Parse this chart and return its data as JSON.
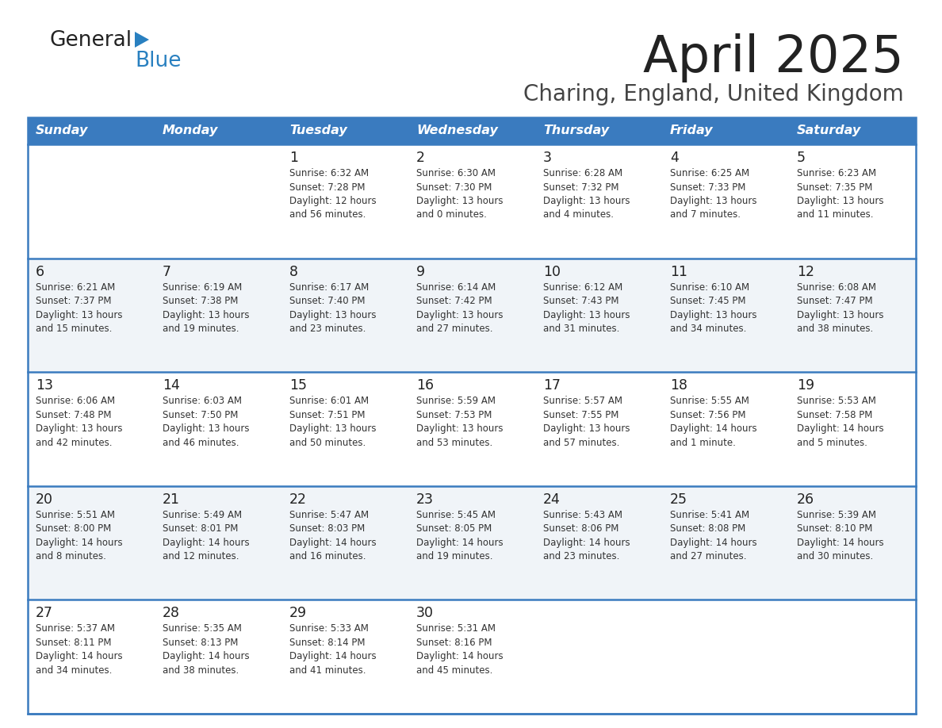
{
  "title": "April 2025",
  "subtitle": "Charing, England, United Kingdom",
  "header_bg_color": "#3a7bbf",
  "header_text_color": "#ffffff",
  "row_bg_even": "#ffffff",
  "row_bg_odd": "#f0f4f8",
  "title_color": "#222222",
  "subtitle_color": "#444444",
  "day_number_color": "#222222",
  "cell_text_color": "#333333",
  "separator_color": "#3a7bbf",
  "logo_text_color": "#222222",
  "logo_blue_color": "#2980c0",
  "days_of_week": [
    "Sunday",
    "Monday",
    "Tuesday",
    "Wednesday",
    "Thursday",
    "Friday",
    "Saturday"
  ],
  "weeks": [
    [
      {
        "day": null,
        "sunrise": null,
        "sunset": null,
        "daylight_line1": null,
        "daylight_line2": null
      },
      {
        "day": null,
        "sunrise": null,
        "sunset": null,
        "daylight_line1": null,
        "daylight_line2": null
      },
      {
        "day": "1",
        "sunrise": "6:32 AM",
        "sunset": "7:28 PM",
        "daylight_line1": "12 hours",
        "daylight_line2": "and 56 minutes."
      },
      {
        "day": "2",
        "sunrise": "6:30 AM",
        "sunset": "7:30 PM",
        "daylight_line1": "13 hours",
        "daylight_line2": "and 0 minutes."
      },
      {
        "day": "3",
        "sunrise": "6:28 AM",
        "sunset": "7:32 PM",
        "daylight_line1": "13 hours",
        "daylight_line2": "and 4 minutes."
      },
      {
        "day": "4",
        "sunrise": "6:25 AM",
        "sunset": "7:33 PM",
        "daylight_line1": "13 hours",
        "daylight_line2": "and 7 minutes."
      },
      {
        "day": "5",
        "sunrise": "6:23 AM",
        "sunset": "7:35 PM",
        "daylight_line1": "13 hours",
        "daylight_line2": "and 11 minutes."
      }
    ],
    [
      {
        "day": "6",
        "sunrise": "6:21 AM",
        "sunset": "7:37 PM",
        "daylight_line1": "13 hours",
        "daylight_line2": "and 15 minutes."
      },
      {
        "day": "7",
        "sunrise": "6:19 AM",
        "sunset": "7:38 PM",
        "daylight_line1": "13 hours",
        "daylight_line2": "and 19 minutes."
      },
      {
        "day": "8",
        "sunrise": "6:17 AM",
        "sunset": "7:40 PM",
        "daylight_line1": "13 hours",
        "daylight_line2": "and 23 minutes."
      },
      {
        "day": "9",
        "sunrise": "6:14 AM",
        "sunset": "7:42 PM",
        "daylight_line1": "13 hours",
        "daylight_line2": "and 27 minutes."
      },
      {
        "day": "10",
        "sunrise": "6:12 AM",
        "sunset": "7:43 PM",
        "daylight_line1": "13 hours",
        "daylight_line2": "and 31 minutes."
      },
      {
        "day": "11",
        "sunrise": "6:10 AM",
        "sunset": "7:45 PM",
        "daylight_line1": "13 hours",
        "daylight_line2": "and 34 minutes."
      },
      {
        "day": "12",
        "sunrise": "6:08 AM",
        "sunset": "7:47 PM",
        "daylight_line1": "13 hours",
        "daylight_line2": "and 38 minutes."
      }
    ],
    [
      {
        "day": "13",
        "sunrise": "6:06 AM",
        "sunset": "7:48 PM",
        "daylight_line1": "13 hours",
        "daylight_line2": "and 42 minutes."
      },
      {
        "day": "14",
        "sunrise": "6:03 AM",
        "sunset": "7:50 PM",
        "daylight_line1": "13 hours",
        "daylight_line2": "and 46 minutes."
      },
      {
        "day": "15",
        "sunrise": "6:01 AM",
        "sunset": "7:51 PM",
        "daylight_line1": "13 hours",
        "daylight_line2": "and 50 minutes."
      },
      {
        "day": "16",
        "sunrise": "5:59 AM",
        "sunset": "7:53 PM",
        "daylight_line1": "13 hours",
        "daylight_line2": "and 53 minutes."
      },
      {
        "day": "17",
        "sunrise": "5:57 AM",
        "sunset": "7:55 PM",
        "daylight_line1": "13 hours",
        "daylight_line2": "and 57 minutes."
      },
      {
        "day": "18",
        "sunrise": "5:55 AM",
        "sunset": "7:56 PM",
        "daylight_line1": "14 hours",
        "daylight_line2": "and 1 minute."
      },
      {
        "day": "19",
        "sunrise": "5:53 AM",
        "sunset": "7:58 PM",
        "daylight_line1": "14 hours",
        "daylight_line2": "and 5 minutes."
      }
    ],
    [
      {
        "day": "20",
        "sunrise": "5:51 AM",
        "sunset": "8:00 PM",
        "daylight_line1": "14 hours",
        "daylight_line2": "and 8 minutes."
      },
      {
        "day": "21",
        "sunrise": "5:49 AM",
        "sunset": "8:01 PM",
        "daylight_line1": "14 hours",
        "daylight_line2": "and 12 minutes."
      },
      {
        "day": "22",
        "sunrise": "5:47 AM",
        "sunset": "8:03 PM",
        "daylight_line1": "14 hours",
        "daylight_line2": "and 16 minutes."
      },
      {
        "day": "23",
        "sunrise": "5:45 AM",
        "sunset": "8:05 PM",
        "daylight_line1": "14 hours",
        "daylight_line2": "and 19 minutes."
      },
      {
        "day": "24",
        "sunrise": "5:43 AM",
        "sunset": "8:06 PM",
        "daylight_line1": "14 hours",
        "daylight_line2": "and 23 minutes."
      },
      {
        "day": "25",
        "sunrise": "5:41 AM",
        "sunset": "8:08 PM",
        "daylight_line1": "14 hours",
        "daylight_line2": "and 27 minutes."
      },
      {
        "day": "26",
        "sunrise": "5:39 AM",
        "sunset": "8:10 PM",
        "daylight_line1": "14 hours",
        "daylight_line2": "and 30 minutes."
      }
    ],
    [
      {
        "day": "27",
        "sunrise": "5:37 AM",
        "sunset": "8:11 PM",
        "daylight_line1": "14 hours",
        "daylight_line2": "and 34 minutes."
      },
      {
        "day": "28",
        "sunrise": "5:35 AM",
        "sunset": "8:13 PM",
        "daylight_line1": "14 hours",
        "daylight_line2": "and 38 minutes."
      },
      {
        "day": "29",
        "sunrise": "5:33 AM",
        "sunset": "8:14 PM",
        "daylight_line1": "14 hours",
        "daylight_line2": "and 41 minutes."
      },
      {
        "day": "30",
        "sunrise": "5:31 AM",
        "sunset": "8:16 PM",
        "daylight_line1": "14 hours",
        "daylight_line2": "and 45 minutes."
      },
      {
        "day": null,
        "sunrise": null,
        "sunset": null,
        "daylight_line1": null,
        "daylight_line2": null
      },
      {
        "day": null,
        "sunrise": null,
        "sunset": null,
        "daylight_line1": null,
        "daylight_line2": null
      },
      {
        "day": null,
        "sunrise": null,
        "sunset": null,
        "daylight_line1": null,
        "daylight_line2": null
      }
    ]
  ]
}
